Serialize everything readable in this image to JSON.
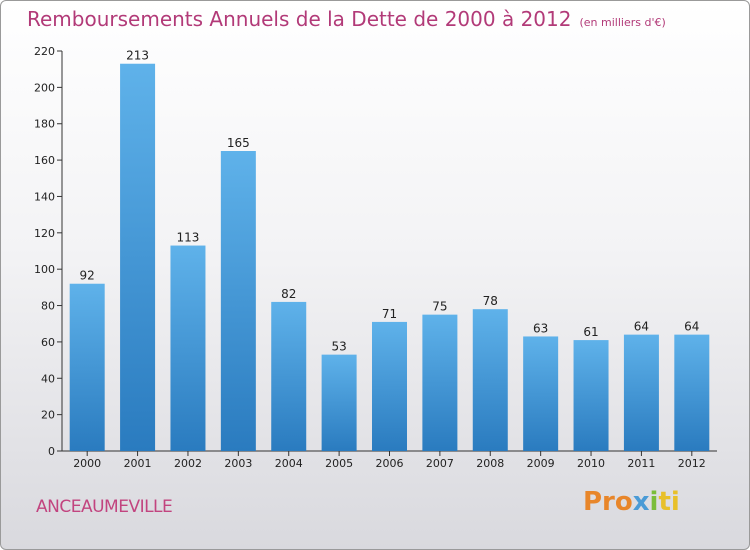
{
  "header": {
    "title": "Remboursements Annuels de la Dette de 2000 à 2012",
    "subtitle": "(en milliers d'€)"
  },
  "footer": {
    "commune": "ANCEAUMEVILLE",
    "brand_parts": [
      "Pro",
      "x",
      "i",
      "ti"
    ]
  },
  "colors": {
    "title": "#b23a78",
    "bar_top": "#5fb2ea",
    "bar_bottom": "#2a7bbf"
  },
  "chart_data": {
    "type": "bar",
    "categories": [
      "2000",
      "2001",
      "2002",
      "2003",
      "2004",
      "2005",
      "2006",
      "2007",
      "2008",
      "2009",
      "2010",
      "2011",
      "2012"
    ],
    "values": [
      92,
      213,
      113,
      165,
      82,
      53,
      71,
      75,
      78,
      63,
      61,
      64,
      64
    ],
    "title": "Remboursements Annuels de la Dette de 2000 à 2012",
    "ylim": [
      0,
      220
    ],
    "yticks": [
      0,
      20,
      40,
      60,
      80,
      100,
      120,
      140,
      160,
      180,
      200,
      220
    ],
    "grid": false,
    "legend": "none"
  }
}
